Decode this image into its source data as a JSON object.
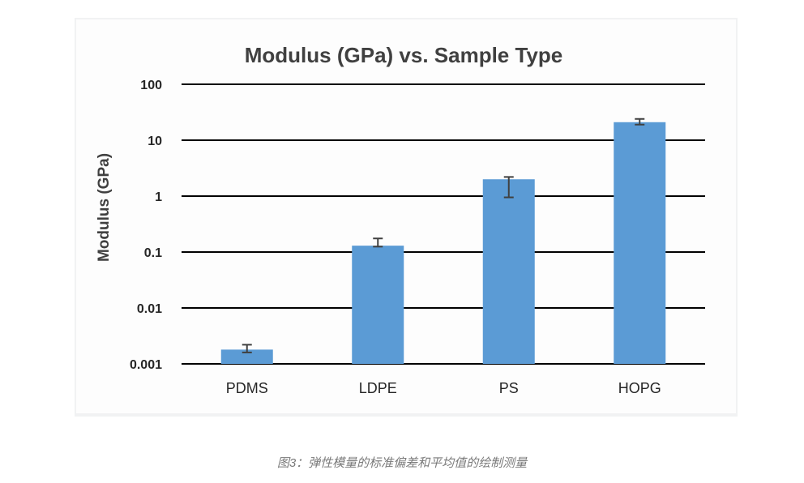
{
  "chart_data": {
    "type": "bar",
    "title": "Modulus (GPa) vs. Sample Type",
    "xlabel": "",
    "ylabel": "Modulus (GPa)",
    "yscale": "log",
    "ylim": [
      0.001,
      100
    ],
    "yticks": [
      0.001,
      0.01,
      0.1,
      1,
      10,
      100
    ],
    "ytick_labels": [
      "0.001",
      "0.01",
      "0.1",
      "1",
      "10",
      "100"
    ],
    "categories": [
      "PDMS",
      "LDPE",
      "PS",
      "HOPG"
    ],
    "values": [
      0.0018,
      0.13,
      2.0,
      21
    ],
    "error_low": [
      0.0016,
      0.125,
      0.95,
      19
    ],
    "error_high": [
      0.0022,
      0.175,
      2.2,
      24
    ],
    "grid": true,
    "bar_color": "#5b9bd5",
    "error_bar_color": "#404040",
    "gridline_color": "#000000"
  },
  "caption": "图3：弹性模量的标准偏差和平均值的绘制测量"
}
